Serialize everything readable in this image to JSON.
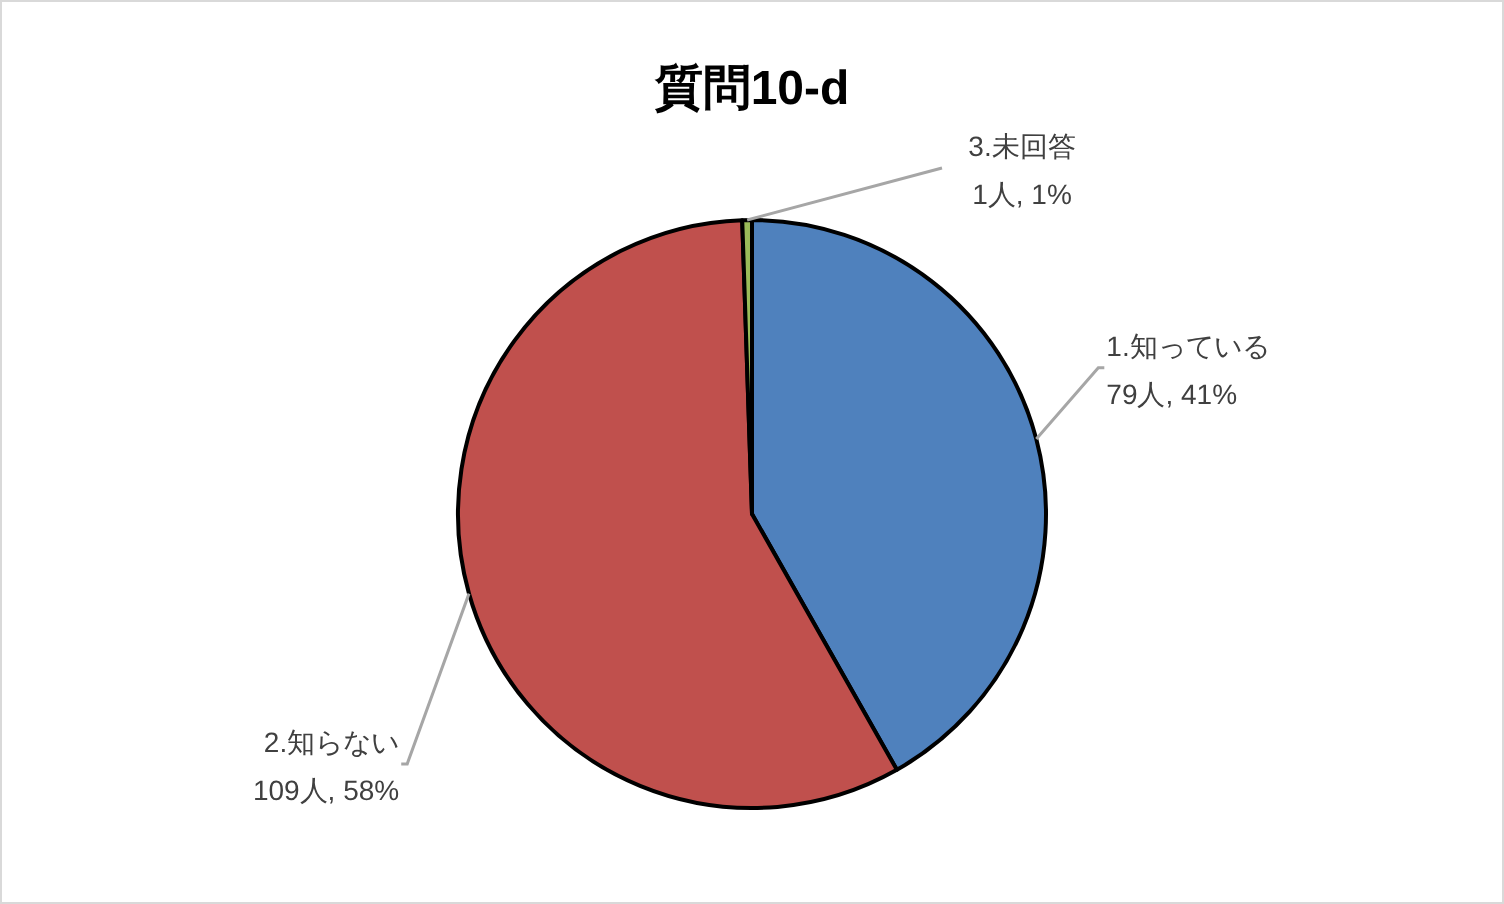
{
  "chart_data": {
    "type": "pie",
    "title": "質問10-d",
    "categories": [
      "1.知っている",
      "2.知らない",
      "3.未回答"
    ],
    "values": [
      79,
      109,
      1
    ],
    "value_labels": [
      "79人, 41%",
      "109人, 58%",
      "1人, 1%"
    ],
    "colors": [
      "#4f81bd",
      "#c0504d",
      "#9bbb59"
    ],
    "legend": false
  }
}
